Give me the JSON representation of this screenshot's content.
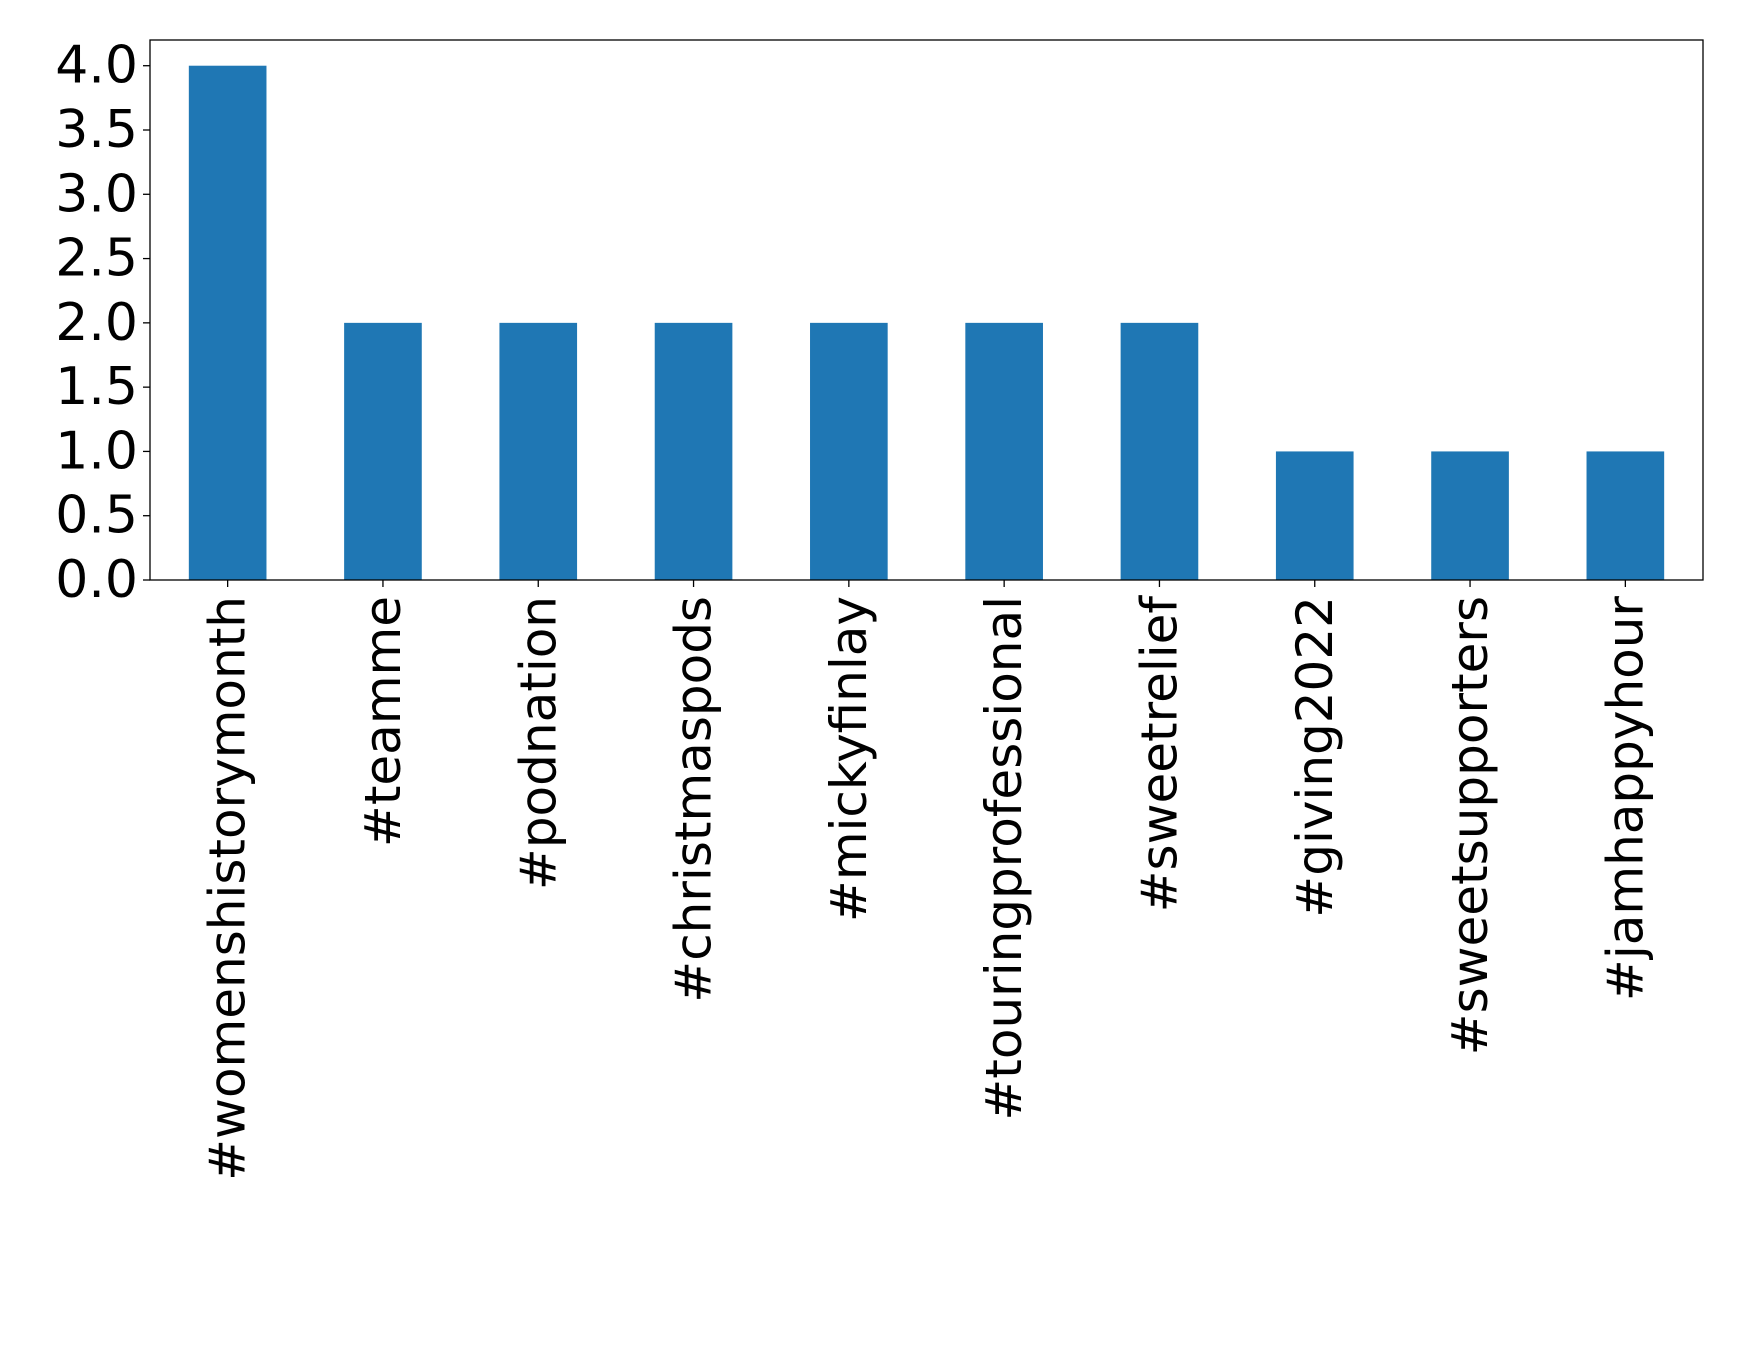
{
  "chart_data": {
    "type": "bar",
    "categories": [
      "#womenshistorymonth",
      "#teamme",
      "#podnation",
      "#christmaspods",
      "#mickyfinlay",
      "#touringprofessional",
      "#sweetrelief",
      "#giving2022",
      "#sweetsupporters",
      "#jamhappyhour"
    ],
    "values": [
      4,
      2,
      2,
      2,
      2,
      2,
      2,
      1,
      1,
      1
    ],
    "title": "",
    "xlabel": "",
    "ylabel": "",
    "ylim": [
      0,
      4.2
    ],
    "yticks": [
      "0.0",
      "0.5",
      "1.0",
      "1.5",
      "2.0",
      "2.5",
      "3.0",
      "3.5",
      "4.0"
    ],
    "grid": false,
    "legend": "none",
    "bar_color": "#1f77b4"
  }
}
